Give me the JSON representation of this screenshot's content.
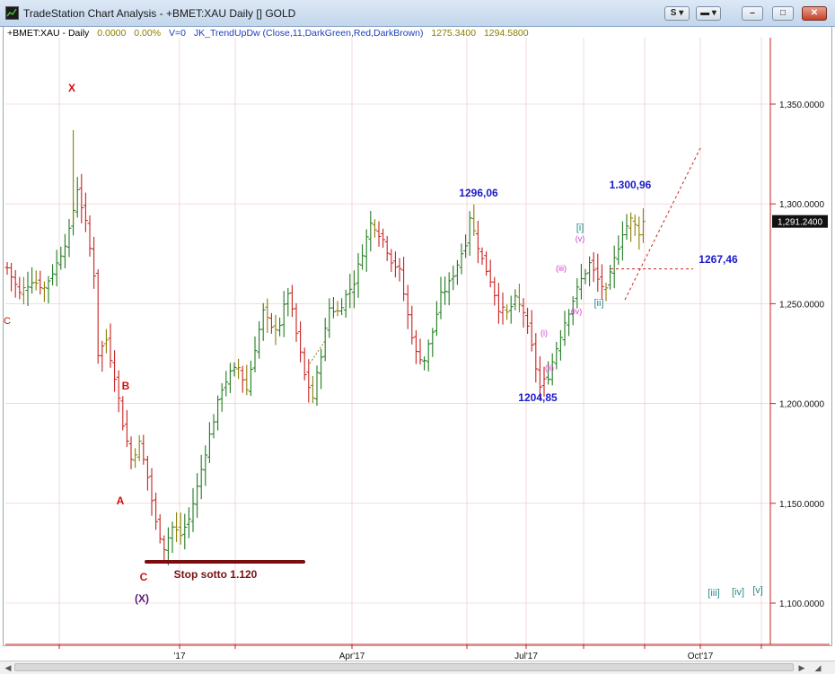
{
  "window": {
    "title": "TradeStation Chart Analysis - +BMET:XAU Daily [] GOLD",
    "buttons": {
      "s": "S",
      "minimize": "–",
      "maximize": "□",
      "close": "✕"
    }
  },
  "header": {
    "symbol": "+BMET:XAU - Daily",
    "change": "0.0000",
    "change_pct": "0.00%",
    "volume": "V=0",
    "indicator": "JK_TrendUpDw (Close,11,DarkGreen,Red,DarkBrown)",
    "val1": "1275.3400",
    "val2": "1294.5800",
    "colors": {
      "symbol": "#000000",
      "change": "#8b7d00",
      "indicator": "#1e3fbf"
    }
  },
  "chart_data": {
    "type": "ohlc_bar",
    "y_ticks": [
      "1,350.0000",
      "1,300.0000",
      "1,250.0000",
      "1,200.0000",
      "1,150.0000",
      "1,100.0000"
    ],
    "x_ticks": [
      "'17",
      "Apr'17",
      "Jul'17",
      "Oct'17"
    ],
    "last_price": "1,291.2400",
    "bar_colors": {
      "up": "#1f7a1f",
      "down": "#c8201e",
      "neutral": "#8b7d00"
    },
    "swing_path": [
      [
        0,
        1268
      ],
      [
        3,
        1255
      ],
      [
        6,
        1262
      ],
      [
        9,
        1258
      ],
      [
        12,
        1270
      ],
      [
        15,
        1286
      ],
      [
        17,
        1308
      ],
      [
        19,
        1290
      ],
      [
        21,
        1265
      ],
      [
        22,
        1225
      ],
      [
        24,
        1232
      ],
      [
        26,
        1214
      ],
      [
        28,
        1190
      ],
      [
        30,
        1172
      ],
      [
        32,
        1180
      ],
      [
        34,
        1163
      ],
      [
        36,
        1140
      ],
      [
        38,
        1128
      ],
      [
        40,
        1138
      ],
      [
        42,
        1134
      ],
      [
        44,
        1142
      ],
      [
        46,
        1158
      ],
      [
        48,
        1176
      ],
      [
        50,
        1192
      ],
      [
        52,
        1208
      ],
      [
        54,
        1215
      ],
      [
        56,
        1218
      ],
      [
        58,
        1207
      ],
      [
        60,
        1228
      ],
      [
        62,
        1246
      ],
      [
        64,
        1237
      ],
      [
        66,
        1240
      ],
      [
        68,
        1256
      ],
      [
        70,
        1235
      ],
      [
        72,
        1214
      ],
      [
        74,
        1203
      ],
      [
        76,
        1225
      ],
      [
        78,
        1248
      ],
      [
        80,
        1246
      ],
      [
        82,
        1254
      ],
      [
        84,
        1261
      ],
      [
        86,
        1276
      ],
      [
        88,
        1290
      ],
      [
        89,
        1289
      ],
      [
        91,
        1282
      ],
      [
        93,
        1272
      ],
      [
        95,
        1266
      ],
      [
        97,
        1244
      ],
      [
        99,
        1225
      ],
      [
        101,
        1222
      ],
      [
        103,
        1236
      ],
      [
        105,
        1254
      ],
      [
        107,
        1260
      ],
      [
        109,
        1270
      ],
      [
        111,
        1281
      ],
      [
        112,
        1294
      ],
      [
        113,
        1286
      ],
      [
        115,
        1272
      ],
      [
        117,
        1262
      ],
      [
        119,
        1248
      ],
      [
        121,
        1245
      ],
      [
        123,
        1252
      ],
      [
        125,
        1246
      ],
      [
        127,
        1228
      ],
      [
        129,
        1208
      ],
      [
        131,
        1214
      ],
      [
        133,
        1228
      ],
      [
        135,
        1241
      ],
      [
        137,
        1252
      ],
      [
        139,
        1262
      ],
      [
        141,
        1270
      ],
      [
        143,
        1262
      ],
      [
        145,
        1256
      ],
      [
        147,
        1272
      ],
      [
        149,
        1286
      ],
      [
        151,
        1292
      ],
      [
        153,
        1286
      ],
      [
        154,
        1291
      ]
    ],
    "annotations": [
      {
        "text": "X",
        "price": 1332,
        "bar": 16,
        "color": "#cc1111",
        "kind": "wave"
      },
      {
        "text": "B",
        "price": 1203,
        "bar": 30,
        "color": "#cc1111",
        "kind": "wave"
      },
      {
        "text": "A",
        "price": 1145,
        "bar": 28,
        "color": "#cc1111",
        "kind": "wave"
      },
      {
        "text": "C",
        "price": 1113,
        "bar": 34,
        "color": "#cc1111",
        "kind": "wave"
      },
      {
        "text": "C",
        "price": 1250,
        "bar": 0,
        "color": "#cc1111",
        "kind": "wave-small"
      },
      {
        "text": "(X)",
        "price": 1100,
        "bar": 34,
        "color": "#5b1a7a",
        "kind": "wave"
      },
      {
        "text": "1296,06",
        "price": 1299,
        "bar": 114,
        "color": "#1b1bc8",
        "kind": "price"
      },
      {
        "text": "1204,85",
        "price": 1196,
        "bar": 128,
        "color": "#1b1bc8",
        "kind": "price"
      },
      {
        "text": "1.300,96",
        "price": 1304,
        "bar": 149,
        "color": "#1b1bc8",
        "kind": "price"
      },
      {
        "text": "1267,46",
        "price": 1267,
        "bar": 170,
        "color": "#1b1bc8",
        "kind": "price"
      },
      {
        "text": "Stop sotto 1.120",
        "price": 1114,
        "bar": 52,
        "color": "#7a1010",
        "kind": "note"
      },
      {
        "text": "[i]",
        "price": 1282,
        "bar": 140,
        "color": "#2a8a8a",
        "kind": "sub"
      },
      {
        "text": "[ii]",
        "price": 1244,
        "bar": 145,
        "color": "#2a8a8a",
        "kind": "sub"
      },
      {
        "text": "[iii]",
        "price": 1104,
        "bar": 172,
        "color": "#2a8a8a",
        "kind": "sub"
      },
      {
        "text": "[iv]",
        "price": 1104,
        "bar": 178,
        "color": "#2a8a8a",
        "kind": "sub"
      },
      {
        "text": "[v]",
        "price": 1105,
        "bar": 183,
        "color": "#2a8a8a",
        "kind": "sub"
      },
      {
        "text": "(v)",
        "price": 1276,
        "bar": 141,
        "color": "#d040c8",
        "kind": "sub-small"
      },
      {
        "text": "(iii)",
        "price": 1260,
        "bar": 136,
        "color": "#d040c8",
        "kind": "sub-small"
      },
      {
        "text": "(iv)",
        "price": 1239,
        "bar": 140,
        "color": "#d040c8",
        "kind": "sub-small"
      },
      {
        "text": "(i)",
        "price": 1226,
        "bar": 132,
        "color": "#d040c8",
        "kind": "sub-small"
      },
      {
        "text": "(ii)",
        "price": 1210,
        "bar": 133,
        "color": "#d040c8",
        "kind": "sub-small"
      }
    ]
  }
}
